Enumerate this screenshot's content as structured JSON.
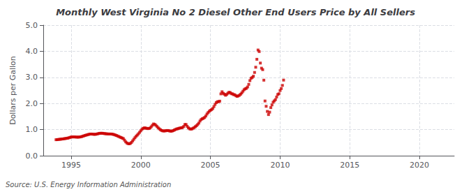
{
  "chart_data": {
    "type": "scatter",
    "title": "Monthly West Virginia No 2 Diesel Other End Users Price by All Sellers",
    "ylabel": "Dollars per Gallon",
    "annotation": "Source: U.S. Energy Information Administration",
    "color": "#cc0000",
    "marker": "square",
    "grid": true,
    "xlim": [
      1993.0,
      2022.5
    ],
    "ylim": [
      0.0,
      5.0
    ],
    "xticks": [
      1995,
      2000,
      2005,
      2010,
      2015,
      2020
    ],
    "yticks": [
      {
        "value": 0.0,
        "label": "0.0"
      },
      {
        "value": 1.0,
        "label": "1.0"
      },
      {
        "value": 2.0,
        "label": "2.0"
      },
      {
        "value": 3.0,
        "label": "3.0"
      },
      {
        "value": 4.0,
        "label": "4.0"
      },
      {
        "value": 5.0,
        "label": "5.0"
      }
    ],
    "x": [
      1993.917,
      1994.0,
      1994.083,
      1994.167,
      1994.25,
      1994.333,
      1994.417,
      1994.5,
      1994.583,
      1994.667,
      1994.75,
      1994.833,
      1994.917,
      1995.0,
      1995.083,
      1995.167,
      1995.25,
      1995.333,
      1995.417,
      1995.5,
      1995.583,
      1995.667,
      1995.75,
      1995.833,
      1995.917,
      1996.0,
      1996.083,
      1996.167,
      1996.25,
      1996.333,
      1996.417,
      1996.5,
      1996.583,
      1996.667,
      1996.75,
      1996.833,
      1996.917,
      1997.0,
      1997.083,
      1997.167,
      1997.25,
      1997.333,
      1997.417,
      1997.5,
      1997.583,
      1997.667,
      1997.75,
      1997.833,
      1997.917,
      1998.0,
      1998.083,
      1998.167,
      1998.25,
      1998.333,
      1998.417,
      1998.5,
      1998.583,
      1998.667,
      1998.75,
      1998.833,
      1998.917,
      1999.0,
      1999.083,
      1999.167,
      1999.25,
      1999.333,
      1999.417,
      1999.5,
      1999.583,
      1999.667,
      1999.75,
      1999.833,
      1999.917,
      2000.0,
      2000.083,
      2000.167,
      2000.25,
      2000.333,
      2000.417,
      2000.5,
      2000.583,
      2000.667,
      2000.75,
      2000.833,
      2000.917,
      2001.0,
      2001.083,
      2001.167,
      2001.25,
      2001.333,
      2001.417,
      2001.5,
      2001.583,
      2001.667,
      2001.75,
      2001.833,
      2001.917,
      2002.0,
      2002.083,
      2002.167,
      2002.25,
      2002.333,
      2002.417,
      2002.5,
      2002.583,
      2002.667,
      2002.75,
      2002.833,
      2002.917,
      2003.0,
      2003.083,
      2003.167,
      2003.25,
      2003.333,
      2003.417,
      2003.5,
      2003.583,
      2003.667,
      2003.75,
      2003.833,
      2003.917,
      2004.0,
      2004.083,
      2004.167,
      2004.25,
      2004.333,
      2004.417,
      2004.5,
      2004.583,
      2004.667,
      2004.75,
      2004.833,
      2004.917,
      2005.0,
      2005.083,
      2005.167,
      2005.25,
      2005.333,
      2005.417,
      2005.5,
      2005.583,
      2005.667,
      2005.75,
      2005.833,
      2005.917,
      2006.0,
      2006.083,
      2006.167,
      2006.25,
      2006.333,
      2006.417,
      2006.5,
      2006.583,
      2006.667,
      2006.75,
      2006.833,
      2006.917,
      2007.0,
      2007.083,
      2007.167,
      2007.25,
      2007.333,
      2007.417,
      2007.5,
      2007.583,
      2007.667,
      2007.75,
      2007.833,
      2007.917,
      2008.0,
      2008.083,
      2008.167,
      2008.25,
      2008.333,
      2008.417,
      2008.5,
      2008.583,
      2008.667,
      2008.75,
      2008.833,
      2008.917,
      2009.0,
      2009.083,
      2009.167,
      2009.25,
      2009.333,
      2009.417,
      2009.5,
      2009.583,
      2009.667,
      2009.75,
      2009.833,
      2009.917,
      2010.0,
      2010.083,
      2010.167,
      2010.25
    ],
    "values": [
      0.612,
      0.615,
      0.622,
      0.627,
      0.632,
      0.638,
      0.643,
      0.65,
      0.658,
      0.665,
      0.672,
      0.685,
      0.7,
      0.715,
      0.718,
      0.72,
      0.718,
      0.715,
      0.712,
      0.71,
      0.715,
      0.72,
      0.73,
      0.745,
      0.76,
      0.775,
      0.79,
      0.8,
      0.815,
      0.825,
      0.83,
      0.828,
      0.822,
      0.818,
      0.82,
      0.828,
      0.84,
      0.852,
      0.858,
      0.86,
      0.858,
      0.852,
      0.845,
      0.84,
      0.835,
      0.832,
      0.83,
      0.832,
      0.828,
      0.82,
      0.808,
      0.792,
      0.775,
      0.755,
      0.735,
      0.715,
      0.695,
      0.675,
      0.655,
      0.595,
      0.53,
      0.488,
      0.462,
      0.455,
      0.47,
      0.51,
      0.568,
      0.63,
      0.69,
      0.745,
      0.79,
      0.84,
      0.895,
      0.955,
      1.01,
      1.045,
      1.065,
      1.06,
      1.048,
      1.038,
      1.042,
      1.06,
      1.108,
      1.165,
      1.215,
      1.2,
      1.165,
      1.118,
      1.068,
      1.028,
      0.992,
      0.965,
      0.95,
      0.948,
      0.952,
      0.96,
      0.965,
      0.96,
      0.945,
      0.938,
      0.945,
      0.962,
      0.985,
      1.008,
      1.025,
      1.035,
      1.05,
      1.062,
      1.068,
      1.082,
      1.12,
      1.195,
      1.195,
      1.125,
      1.068,
      1.03,
      1.018,
      1.025,
      1.05,
      1.078,
      1.112,
      1.148,
      1.195,
      1.248,
      1.328,
      1.385,
      1.415,
      1.435,
      1.465,
      1.52,
      1.595,
      1.652,
      1.7,
      1.738,
      1.768,
      1.808,
      1.882,
      1.965,
      2.032,
      2.068,
      2.068,
      2.088,
      2.368,
      2.448,
      2.388,
      2.355,
      2.315,
      2.345,
      2.392,
      2.428,
      2.418,
      2.375,
      2.368,
      2.338,
      2.332,
      2.295,
      2.272,
      2.292,
      2.315,
      2.355,
      2.405,
      2.468,
      2.528,
      2.562,
      2.582,
      2.632,
      2.732,
      2.875,
      2.965,
      2.998,
      3.045,
      3.188,
      3.388,
      3.692,
      4.048,
      3.988,
      3.548,
      3.352,
      3.295,
      2.892,
      2.095,
      1.892,
      1.695,
      1.575,
      1.668,
      1.842,
      1.945,
      2.048,
      2.098,
      2.148,
      2.248,
      2.345,
      2.372,
      2.495,
      2.572,
      2.692,
      2.895
    ]
  }
}
